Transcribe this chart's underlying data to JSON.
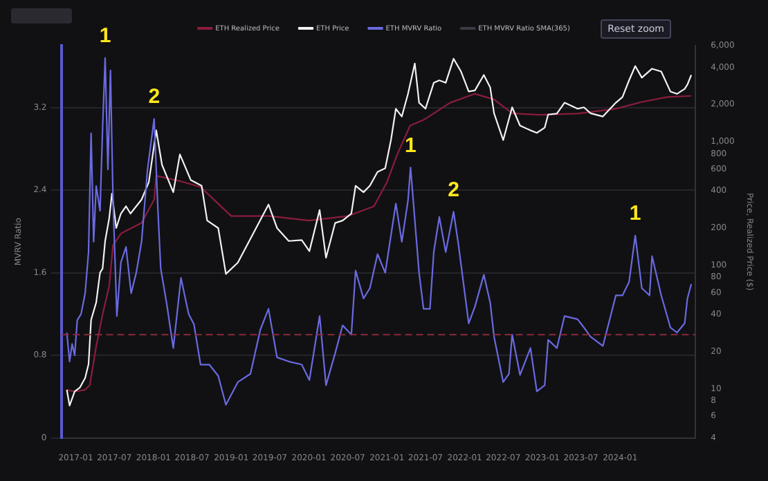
{
  "chart_data": {
    "type": "line",
    "ylabel": "MVRV Ratio",
    "y2label": "Price, Realized Price ($)",
    "xlim": [
      "2016-10-28",
      "2024-12-20"
    ],
    "xticks": [
      {
        "value": "2017-01-01",
        "label": "2017-01"
      },
      {
        "value": "2017-07-01",
        "label": "2017-07"
      },
      {
        "value": "2018-01-01",
        "label": "2018-01"
      },
      {
        "value": "2018-07-01",
        "label": "2018-07"
      },
      {
        "value": "2019-01-01",
        "label": "2019-01"
      },
      {
        "value": "2019-07-01",
        "label": "2019-07"
      },
      {
        "value": "2020-01-01",
        "label": "2020-01"
      },
      {
        "value": "2020-07-01",
        "label": "2020-07"
      },
      {
        "value": "2021-01-01",
        "label": "2021-01"
      },
      {
        "value": "2021-07-01",
        "label": "2021-07"
      },
      {
        "value": "2022-01-01",
        "label": "2022-01"
      },
      {
        "value": "2022-07-01",
        "label": "2022-07"
      },
      {
        "value": "2023-01-01",
        "label": "2023-01"
      },
      {
        "value": "2023-07-01",
        "label": "2023-07"
      },
      {
        "value": "2024-01-01",
        "label": "2024-01"
      }
    ],
    "ylim": [
      0,
      3.8
    ],
    "yticks": [
      0,
      0.8,
      1.6,
      2.4,
      3.2
    ],
    "y2lim": [
      4,
      6000
    ],
    "y2ticks": [
      4,
      6,
      8,
      10,
      20,
      40,
      60,
      80,
      100,
      200,
      400,
      600,
      800,
      {
        "value": 1000,
        "label": "1,000"
      },
      {
        "value": 2000,
        "label": "2,000"
      },
      {
        "value": 4000,
        "label": "4,000"
      },
      {
        "value": 6000,
        "label": "6,000"
      }
    ],
    "log": "y2",
    "grid": "y",
    "legend": "top",
    "line_style": "solid",
    "marker": "none",
    "ref_lines": [
      {
        "axis": "y",
        "value": 1,
        "color": "#8b2a3a",
        "line_style": "dashed"
      }
    ],
    "series": [
      {
        "name": "ETH Realized Price",
        "color": "#8b1d3c",
        "axis": "y2",
        "x": [
          "2016-11-20",
          "2016-12-27",
          "2017-02-14",
          "2017-03-08",
          "2017-04-07",
          "2017-05-07",
          "2017-06-07",
          "2017-06-25",
          "2017-08-01",
          "2017-08-25",
          "2017-11-06",
          "2018-01-04",
          "2018-01-14",
          "2018-05-05",
          "2018-08-10",
          "2019-01-01",
          "2019-07-01",
          "2020-01-01",
          "2020-07-01",
          "2020-11-01",
          "2021-01-01",
          "2021-02-20",
          "2021-04-20",
          "2021-06-22",
          "2021-10-25",
          "2022-02-18",
          "2022-05-19",
          "2022-08-12",
          "2022-12-15",
          "2023-06-15",
          "2023-12-12",
          "2024-04-12",
          "2024-08-10",
          "2024-11-30"
        ],
        "values": [
          9.8,
          9.5,
          9.8,
          10.7,
          22,
          40,
          68,
          145,
          180,
          190,
          220,
          340,
          530,
          480,
          430,
          250,
          250,
          230,
          250,
          300,
          470,
          800,
          1350,
          1500,
          2070,
          2440,
          2200,
          1700,
          1650,
          1690,
          1850,
          2100,
          2300,
          2350
        ]
      },
      {
        "name": "ETH Price",
        "color": "#f2f2f2",
        "axis": "y2",
        "x": [
          "2016-11-20",
          "2016-12-03",
          "2016-12-27",
          "2017-01-20",
          "2017-02-14",
          "2017-03-02",
          "2017-03-14",
          "2017-04-07",
          "2017-04-25",
          "2017-05-07",
          "2017-05-19",
          "2017-06-07",
          "2017-06-20",
          "2017-07-10",
          "2017-08-01",
          "2017-08-25",
          "2017-09-15",
          "2017-11-06",
          "2017-12-10",
          "2018-01-14",
          "2018-02-10",
          "2018-04-04",
          "2018-05-05",
          "2018-06-25",
          "2018-08-15",
          "2018-09-10",
          "2018-11-01",
          "2018-12-07",
          "2019-02-01",
          "2019-06-25",
          "2019-08-04",
          "2019-09-28",
          "2019-11-28",
          "2020-01-03",
          "2020-02-20",
          "2020-03-21",
          "2020-05-03",
          "2020-06-07",
          "2020-07-18",
          "2020-08-07",
          "2020-09-13",
          "2020-10-13",
          "2020-11-18",
          "2020-12-24",
          "2021-01-20",
          "2021-02-12",
          "2021-03-12",
          "2021-04-10",
          "2021-05-12",
          "2021-06-01",
          "2021-07-01",
          "2021-08-09",
          "2021-09-04",
          "2021-10-04",
          "2021-11-10",
          "2021-12-15",
          "2022-01-20",
          "2022-02-18",
          "2022-04-01",
          "2022-05-01",
          "2022-05-19",
          "2022-07-01",
          "2022-08-12",
          "2022-09-18",
          "2022-11-06",
          "2022-12-06",
          "2023-01-12",
          "2023-01-28",
          "2023-03-10",
          "2023-04-15",
          "2023-06-15",
          "2023-07-15",
          "2023-08-15",
          "2023-10-12",
          "2023-12-12",
          "2024-01-12",
          "2024-02-12",
          "2024-03-12",
          "2024-04-12",
          "2024-05-30",
          "2024-07-12",
          "2024-08-24",
          "2024-09-24",
          "2024-10-30",
          "2024-11-12",
          "2024-11-30"
        ],
        "values": [
          9.8,
          7.3,
          9.5,
          10.2,
          12.2,
          15.8,
          36,
          50,
          87,
          94,
          157,
          240,
          380,
          200,
          262,
          300,
          262,
          340,
          470,
          1236,
          650,
          390,
          790,
          490,
          440,
          230,
          200,
          85,
          105,
          310,
          200,
          157,
          160,
          130,
          280,
          115,
          220,
          230,
          262,
          440,
          390,
          440,
          570,
          610,
          1030,
          1850,
          1600,
          2440,
          4300,
          2070,
          1850,
          3000,
          3140,
          3000,
          4700,
          3700,
          2550,
          2600,
          3470,
          2750,
          1700,
          1030,
          1900,
          1350,
          1236,
          1180,
          1300,
          1660,
          1690,
          2070,
          1850,
          1900,
          1700,
          1600,
          2070,
          2300,
          3140,
          4100,
          3300,
          3900,
          3700,
          2550,
          2440,
          2680,
          2900,
          3470
        ]
      },
      {
        "name": "ETH MVRV Ratio",
        "color": "#6a6ae0",
        "axis": "y",
        "x": [
          "2016-11-20",
          "2016-12-03",
          "2016-12-15",
          "2016-12-27",
          "2017-01-08",
          "2017-01-26",
          "2017-02-14",
          "2017-03-02",
          "2017-03-14",
          "2017-03-26",
          "2017-04-07",
          "2017-04-25",
          "2017-05-07",
          "2017-05-19",
          "2017-06-01",
          "2017-06-13",
          "2017-06-25",
          "2017-07-13",
          "2017-08-01",
          "2017-08-25",
          "2017-09-18",
          "2017-10-12",
          "2017-11-06",
          "2017-12-04",
          "2018-01-04",
          "2018-01-22",
          "2018-02-04",
          "2018-03-04",
          "2018-04-04",
          "2018-05-10",
          "2018-06-15",
          "2018-07-10",
          "2018-08-10",
          "2018-09-20",
          "2018-11-01",
          "2018-12-07",
          "2019-02-01",
          "2019-04-01",
          "2019-05-18",
          "2019-06-25",
          "2019-08-04",
          "2019-09-28",
          "2019-11-28",
          "2020-01-03",
          "2020-02-20",
          "2020-03-21",
          "2020-05-03",
          "2020-06-07",
          "2020-07-18",
          "2020-08-07",
          "2020-09-13",
          "2020-10-13",
          "2020-11-18",
          "2020-12-24",
          "2021-02-12",
          "2021-03-12",
          "2021-04-10",
          "2021-04-22",
          "2021-06-01",
          "2021-06-22",
          "2021-07-22",
          "2021-08-09",
          "2021-09-04",
          "2021-10-04",
          "2021-11-10",
          "2021-12-03",
          "2022-01-20",
          "2022-02-18",
          "2022-04-01",
          "2022-05-01",
          "2022-05-19",
          "2022-07-01",
          "2022-07-28",
          "2022-08-12",
          "2022-09-18",
          "2022-11-06",
          "2022-12-06",
          "2023-01-12",
          "2023-01-28",
          "2023-03-10",
          "2023-04-15",
          "2023-06-15",
          "2023-07-15",
          "2023-08-15",
          "2023-10-12",
          "2023-12-12",
          "2024-01-12",
          "2024-02-12",
          "2024-03-12",
          "2024-04-12",
          "2024-05-18",
          "2024-05-30",
          "2024-07-12",
          "2024-08-24",
          "2024-09-24",
          "2024-10-30",
          "2024-11-12",
          "2024-11-30"
        ],
        "values": [
          1.02,
          0.74,
          0.91,
          0.8,
          1.14,
          1.2,
          1.4,
          1.8,
          2.95,
          1.9,
          2.44,
          2.2,
          3.0,
          3.68,
          2.6,
          3.56,
          2.3,
          1.18,
          1.7,
          1.85,
          1.4,
          1.6,
          1.9,
          2.6,
          3.09,
          2.2,
          1.64,
          1.3,
          0.87,
          1.55,
          1.2,
          1.1,
          0.71,
          0.71,
          0.6,
          0.32,
          0.54,
          0.62,
          1.05,
          1.25,
          0.78,
          0.74,
          0.71,
          0.56,
          1.18,
          0.51,
          0.82,
          1.09,
          1.0,
          1.62,
          1.35,
          1.45,
          1.78,
          1.6,
          2.27,
          1.9,
          2.3,
          2.62,
          1.6,
          1.25,
          1.25,
          1.8,
          2.14,
          1.8,
          2.19,
          1.87,
          1.11,
          1.27,
          1.58,
          1.31,
          0.98,
          0.54,
          0.62,
          1.0,
          0.61,
          0.87,
          0.45,
          0.51,
          0.95,
          0.87,
          1.18,
          1.15,
          1.07,
          0.98,
          0.89,
          1.38,
          1.38,
          1.51,
          1.96,
          1.45,
          1.38,
          1.76,
          1.38,
          1.07,
          1.02,
          1.11,
          1.35,
          1.49
        ]
      },
      {
        "name": "ETH MVRV Ratio SMA(365)",
        "color": "#3a3a44",
        "axis": "y"
      }
    ],
    "annotations": [
      {
        "text": "1",
        "x": "2017-05-19",
        "y": 3.68
      },
      {
        "text": "2",
        "x": "2018-01-04",
        "y": 3.09
      },
      {
        "text": "1",
        "x": "2021-04-22",
        "y": 2.62
      },
      {
        "text": "2",
        "x": "2021-11-10",
        "y": 2.19
      },
      {
        "text": "1",
        "x": "2024-03-12",
        "y": 1.96
      },
      "Reset zoom"
    ]
  }
}
